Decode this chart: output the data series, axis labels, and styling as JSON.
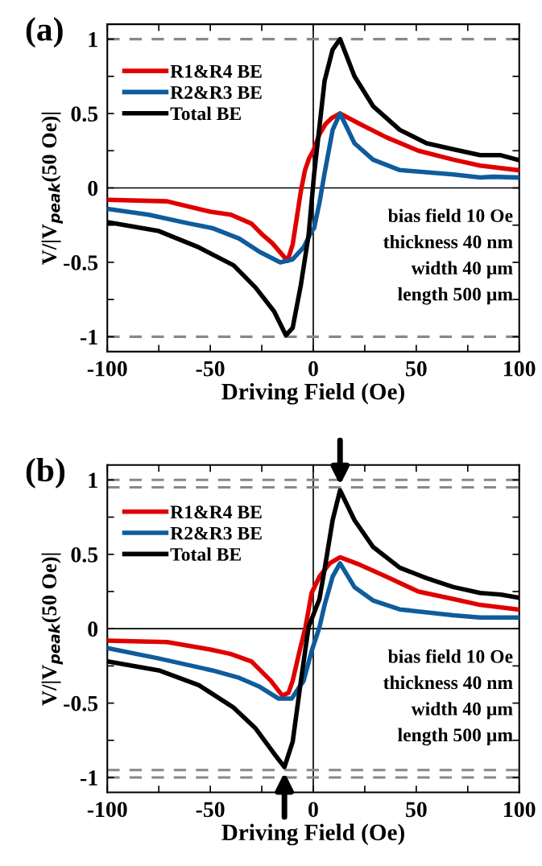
{
  "chart_data": [
    {
      "type": "line",
      "title": "(a)",
      "xlabel": "Driving Field (Oe)",
      "ylabel": "V/|V$_{peak}$(50 Oe)|",
      "xlim": [
        -100,
        100
      ],
      "ylim": [
        -1.1,
        1.1
      ],
      "xticks": [
        -100,
        {
          "value": -75,
          "label": null
        },
        -50,
        {
          "value": -25,
          "label": null
        },
        0,
        {
          "value": 25,
          "label": null
        },
        50,
        {
          "value": 75,
          "label": null
        },
        100
      ],
      "yticks": [
        -1,
        {
          "value": -0.75,
          "label": null
        },
        -0.5,
        {
          "value": -0.25,
          "label": null
        },
        0,
        {
          "value": 0.25,
          "label": null
        },
        0.5,
        {
          "value": 0.75,
          "label": null
        },
        1
      ],
      "legend": "top left",
      "grid": false,
      "marker": "none",
      "line_style": "solid",
      "annotations": [
        "bias field 10 Oe",
        "thickness 40 nm",
        "width 40 µm",
        "length 500 µm"
      ],
      "ref_lines": [
        {
          "axis": "y",
          "value": 0,
          "color": "#000000",
          "line_style": "solid"
        },
        {
          "axis": "x",
          "value": 0,
          "color": "#000000",
          "line_style": "solid"
        },
        {
          "axis": "y",
          "value": 1,
          "color": "#888888",
          "line_style": "dashed"
        },
        {
          "axis": "y",
          "value": -1,
          "color": "#888888",
          "line_style": "dashed"
        }
      ],
      "series": [
        {
          "name": "R1&R4 BE",
          "color": "#e00000",
          "x": [
            -100,
            -71,
            -50,
            -40,
            -30,
            -25,
            -20,
            -15,
            -12.5,
            -10,
            -8,
            -6,
            -4,
            -2,
            0,
            3,
            6,
            9,
            13,
            22.6,
            35.5,
            51,
            68,
            81,
            99
          ],
          "values": [
            -0.08,
            -0.09,
            -0.16,
            -0.18,
            -0.24,
            -0.31,
            -0.37,
            -0.45,
            -0.49,
            -0.38,
            -0.2,
            -0.02,
            0.12,
            0.2,
            0.25,
            0.36,
            0.43,
            0.47,
            0.5,
            0.43,
            0.34,
            0.25,
            0.19,
            0.15,
            0.12
          ]
        },
        {
          "name": "R2&R3 BE",
          "color": "#0f5c9c",
          "x": [
            -100,
            -80,
            -60,
            -49,
            -36,
            -26,
            -16,
            -10,
            -4.7,
            -0.8,
            0.4,
            3,
            5.5,
            9.4,
            13,
            20,
            29,
            42,
            68,
            81,
            87.5,
            99
          ],
          "values": [
            -0.14,
            -0.18,
            -0.24,
            -0.27,
            -0.34,
            -0.43,
            -0.5,
            -0.48,
            -0.4,
            -0.29,
            -0.27,
            -0.1,
            0.1,
            0.39,
            0.5,
            0.3,
            0.19,
            0.12,
            0.09,
            0.07,
            0.075,
            0.07
          ]
        },
        {
          "name": "Total BE",
          "color": "#000000",
          "x": [
            -100,
            -75,
            -55.5,
            -38.7,
            -28,
            -19,
            -13.3,
            -10,
            -6,
            -2.3,
            0.4,
            5.5,
            9.4,
            13,
            20,
            29,
            42,
            55,
            68,
            81,
            91,
            99
          ],
          "values": [
            -0.23,
            -0.29,
            -0.4,
            -0.52,
            -0.67,
            -0.83,
            -0.99,
            -0.94,
            -0.65,
            -0.32,
            0.09,
            0.72,
            0.93,
            1.0,
            0.75,
            0.55,
            0.39,
            0.3,
            0.26,
            0.22,
            0.22,
            0.19
          ]
        }
      ]
    },
    {
      "type": "line",
      "title": "(b)",
      "xlabel": "Driving Field (Oe)",
      "ylabel": "V/|V$_{peak}$(50 Oe)|",
      "xlim": [
        -100,
        100
      ],
      "ylim": [
        -1.1,
        1.1
      ],
      "xticks": [
        -100,
        {
          "value": -75,
          "label": null
        },
        -50,
        {
          "value": -25,
          "label": null
        },
        0,
        {
          "value": 25,
          "label": null
        },
        50,
        {
          "value": 75,
          "label": null
        },
        100
      ],
      "yticks": [
        -1,
        {
          "value": -0.75,
          "label": null
        },
        -0.5,
        {
          "value": -0.25,
          "label": null
        },
        0,
        {
          "value": 0.25,
          "label": null
        },
        0.5,
        {
          "value": 0.75,
          "label": null
        },
        1
      ],
      "legend": "top left",
      "grid": false,
      "marker": "none",
      "line_style": "solid",
      "annotations": [
        "bias field 10 Oe",
        "thickness 40 nm",
        "width 40 µm",
        "length 500 µm"
      ],
      "ref_lines": [
        {
          "axis": "y",
          "value": 0,
          "color": "#000000",
          "line_style": "solid"
        },
        {
          "axis": "x",
          "value": 0,
          "color": "#000000",
          "line_style": "solid"
        },
        {
          "axis": "y",
          "value": 1,
          "color": "#888888",
          "line_style": "dashed"
        },
        {
          "axis": "y",
          "value": 0.95,
          "color": "#888888",
          "line_style": "dashed"
        },
        {
          "axis": "y",
          "value": -0.95,
          "color": "#888888",
          "line_style": "dashed"
        },
        {
          "axis": "y",
          "value": -1,
          "color": "#888888",
          "line_style": "dashed"
        }
      ],
      "series": [
        {
          "name": "R1&R4 BE",
          "color": "#e00000",
          "x": [
            -100,
            -71,
            -50,
            -40,
            -30,
            -20.6,
            -15,
            -12,
            -10,
            -7,
            -3.8,
            -0.8,
            3,
            8,
            13,
            22.6,
            35.5,
            51,
            68,
            81,
            99
          ],
          "values": [
            -0.08,
            -0.09,
            -0.14,
            -0.17,
            -0.22,
            -0.35,
            -0.45,
            -0.43,
            -0.35,
            -0.17,
            0.01,
            0.24,
            0.35,
            0.44,
            0.48,
            0.43,
            0.35,
            0.25,
            0.2,
            0.16,
            0.13
          ]
        },
        {
          "name": "R2&R3 BE",
          "color": "#0f5c9c",
          "x": [
            -100,
            -75,
            -49,
            -36,
            -26,
            -16.8,
            -10.5,
            -4.7,
            -0.8,
            3,
            5.5,
            9.4,
            13,
            20,
            29,
            42,
            68,
            81,
            99
          ],
          "values": [
            -0.13,
            -0.2,
            -0.28,
            -0.33,
            -0.39,
            -0.47,
            -0.47,
            -0.35,
            -0.15,
            0.01,
            0.16,
            0.35,
            0.44,
            0.28,
            0.19,
            0.13,
            0.09,
            0.075,
            0.075
          ]
        },
        {
          "name": "Total BE",
          "color": "#000000",
          "x": [
            -100,
            -75,
            -55.5,
            -38.7,
            -28,
            -19,
            -14,
            -10,
            -6,
            -2.3,
            3,
            5.5,
            9.4,
            13,
            20,
            29,
            42,
            55,
            68,
            81,
            91,
            99
          ],
          "values": [
            -0.22,
            -0.28,
            -0.38,
            -0.53,
            -0.67,
            -0.84,
            -0.93,
            -0.76,
            -0.35,
            0.01,
            0.2,
            0.4,
            0.73,
            0.93,
            0.73,
            0.55,
            0.41,
            0.34,
            0.28,
            0.24,
            0.23,
            0.21
          ]
        }
      ]
    }
  ]
}
